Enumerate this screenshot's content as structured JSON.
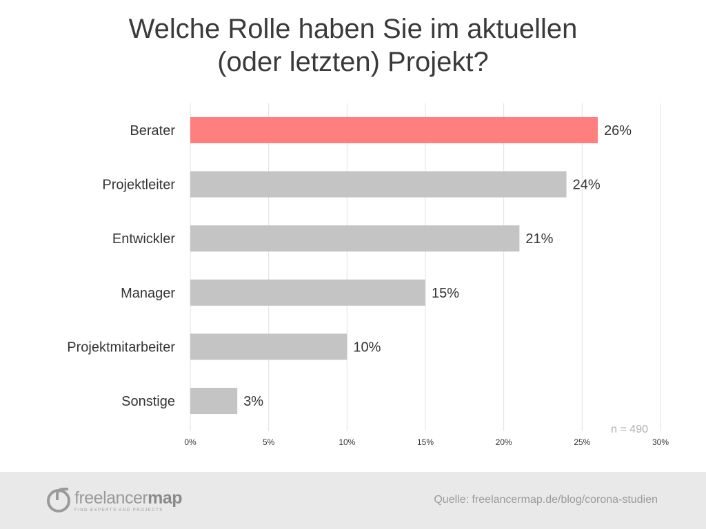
{
  "title": {
    "line1": "Welche Rolle haben Sie im aktuellen",
    "line2": "(oder letzten) Projekt?"
  },
  "chart_data": {
    "type": "bar",
    "orientation": "horizontal",
    "title": "Welche Rolle haben Sie im aktuellen (oder letzten) Projekt?",
    "categories": [
      "Berater",
      "Projektleiter",
      "Entwickler",
      "Manager",
      "Projektmitarbeiter",
      "Sonstige"
    ],
    "values": [
      26,
      24,
      21,
      15,
      10,
      3
    ],
    "value_labels": [
      "26%",
      "24%",
      "21%",
      "15%",
      "10%",
      "3%"
    ],
    "highlight_index": 0,
    "colors": {
      "highlight": "#ff7f7f",
      "default": "#c4c4c4",
      "grid": "#e0e0e0",
      "text": "#333333"
    },
    "xlim": [
      0,
      30
    ],
    "xticks": [
      0,
      5,
      10,
      15,
      20,
      25,
      30
    ],
    "xtick_labels": [
      "0%",
      "5%",
      "10%",
      "15%",
      "20%",
      "25%",
      "30%"
    ],
    "xlabel": "",
    "ylabel": "",
    "grid": true,
    "annotation": "n = 490"
  },
  "footer": {
    "logo_name_light": "freelancer",
    "logo_name_bold": "map",
    "logo_tagline": "FIND EXPERTS AND PROJECTS",
    "source": "Quelle: freelancermap.de/blog/corona-studien"
  }
}
